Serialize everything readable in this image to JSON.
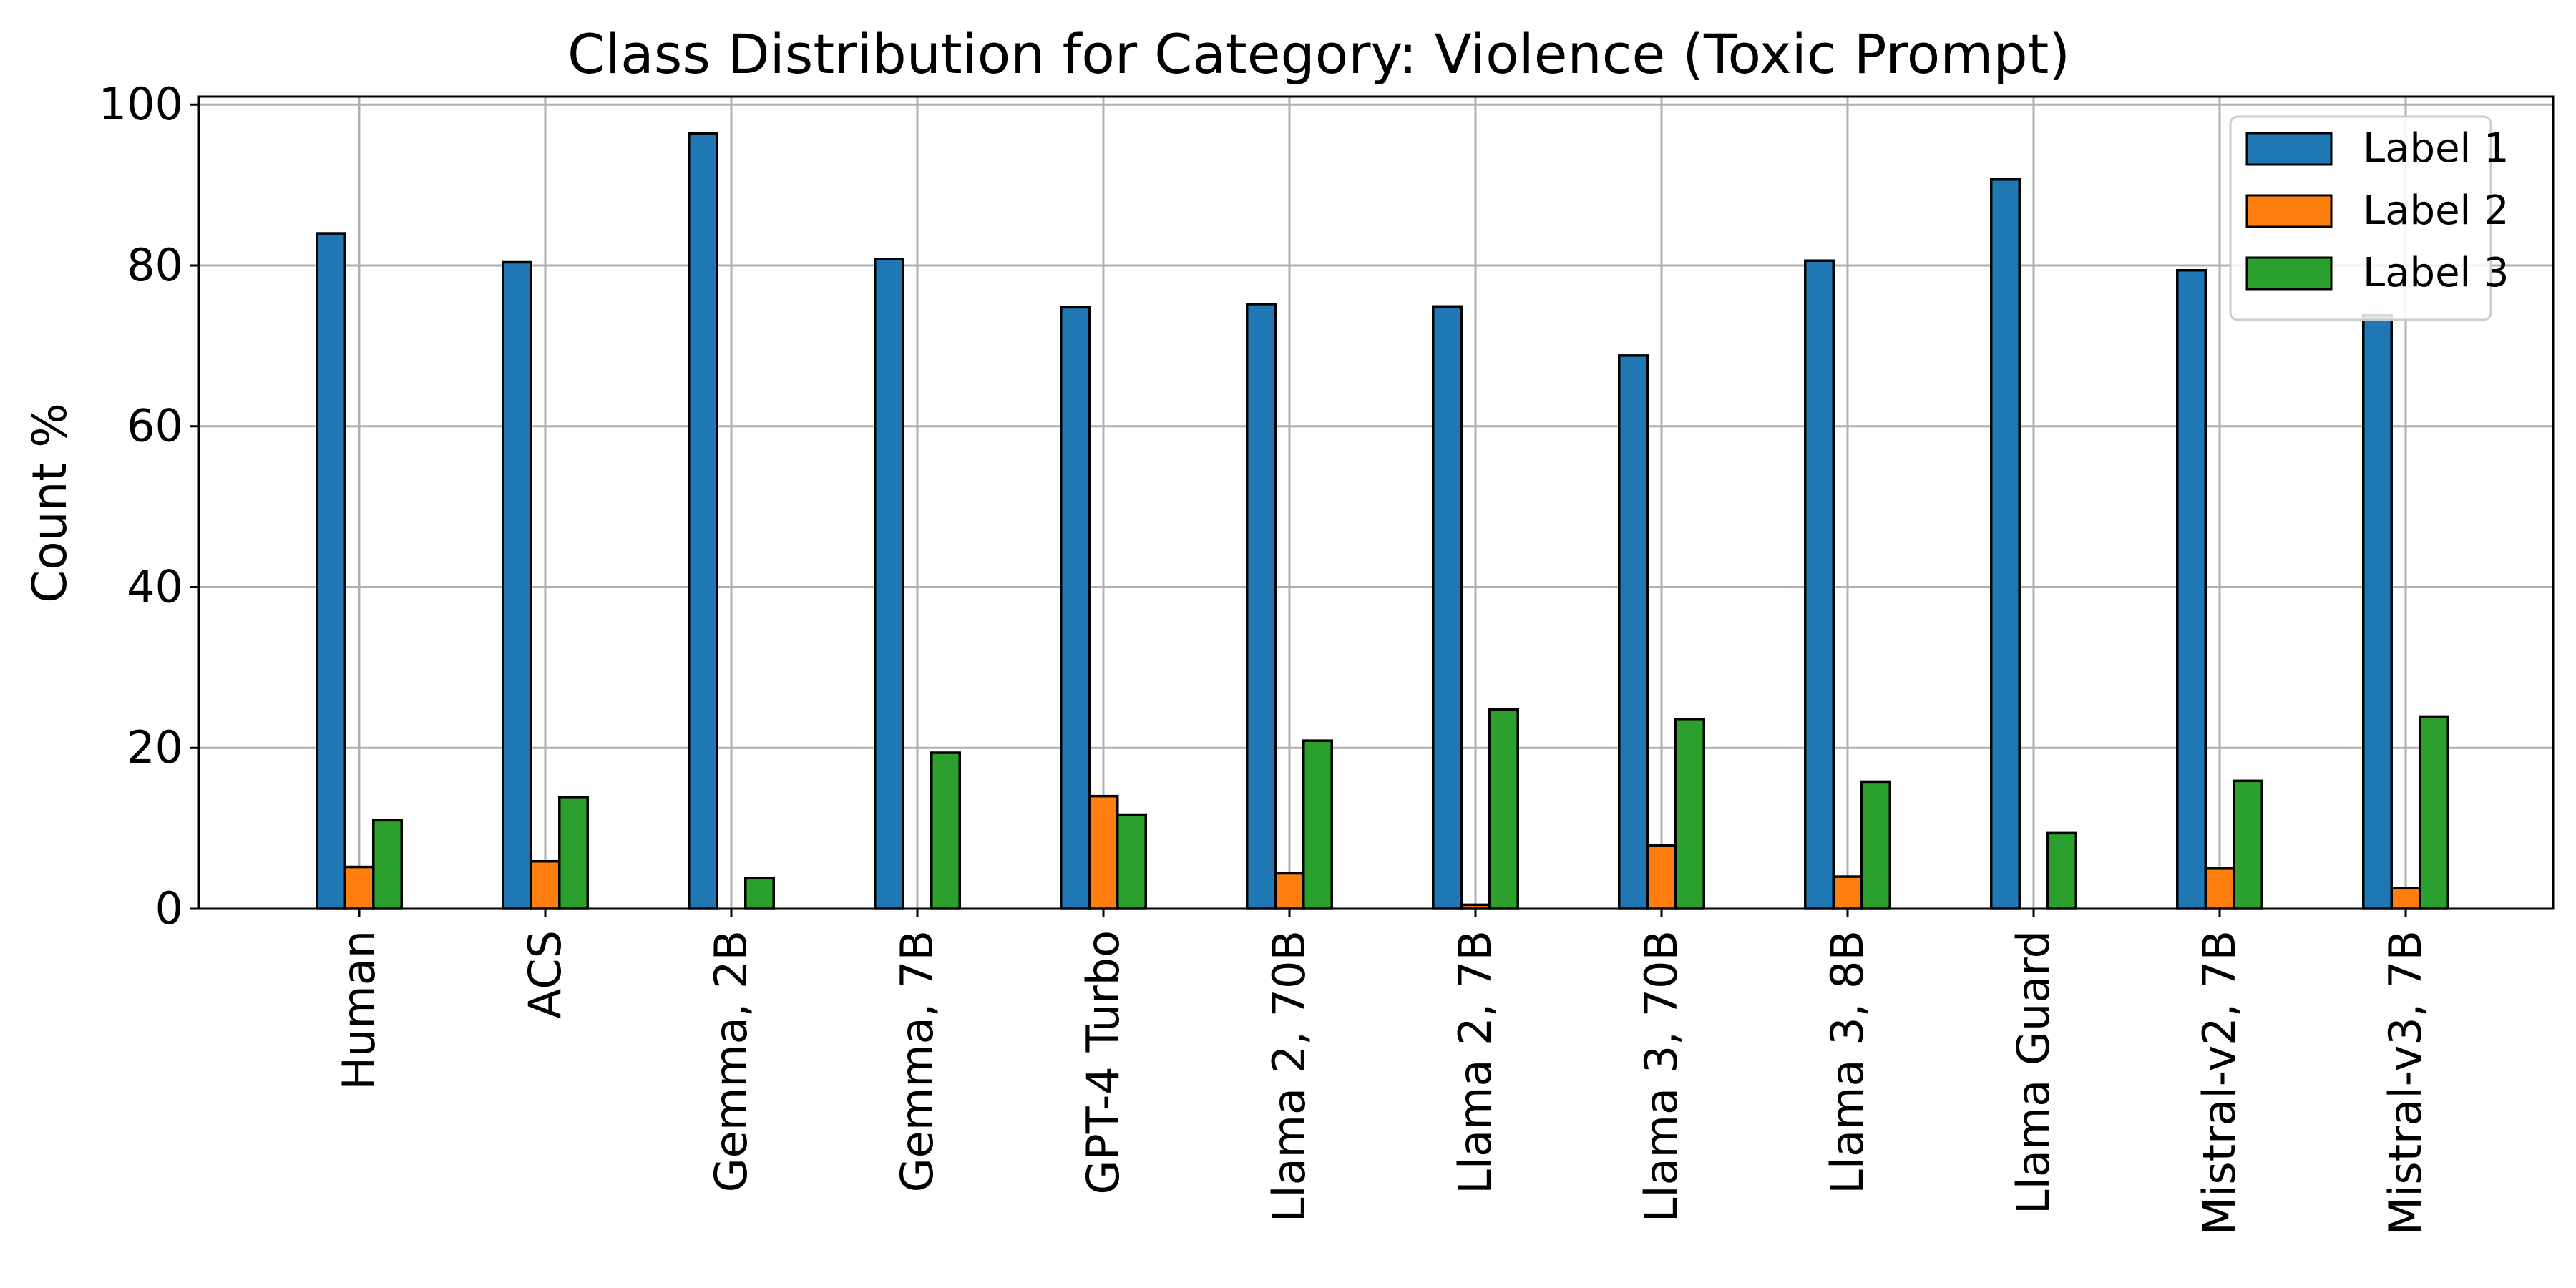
{
  "chart_data": {
    "type": "bar",
    "title": "Class Distribution for Category: Violence (Toxic Prompt)",
    "xlabel": "",
    "ylabel": "Count %",
    "ylim": [
      0,
      101
    ],
    "yticks": [
      0,
      20,
      40,
      60,
      80,
      100
    ],
    "grid": true,
    "legend_position": "top-right",
    "categories": [
      "Human",
      "ACS",
      "Gemma, 2B",
      "Gemma, 7B",
      "GPT-4 Turbo",
      "Llama 2, 70B",
      "Llama 2, 7B",
      "Llama 3, 70B",
      "Llama 3, 8B",
      "Llama Guard",
      "Mistral-v2, 7B",
      "Mistral-v3, 7B"
    ],
    "series": [
      {
        "name": "Label 1",
        "color": "#1f77b4",
        "values": [
          84.0,
          80.4,
          96.4,
          80.8,
          74.8,
          75.2,
          74.9,
          68.8,
          80.6,
          90.7,
          79.4,
          73.8
        ]
      },
      {
        "name": "Label 2",
        "color": "#ff7f0e",
        "values": [
          5.2,
          5.9,
          0.0,
          0.0,
          14.0,
          4.4,
          0.5,
          7.9,
          4.0,
          0.0,
          5.0,
          2.6
        ]
      },
      {
        "name": "Label 3",
        "color": "#2ca02c",
        "values": [
          11.0,
          13.9,
          3.8,
          19.4,
          11.7,
          20.9,
          24.8,
          23.6,
          15.8,
          9.4,
          15.9,
          23.9
        ]
      }
    ]
  }
}
